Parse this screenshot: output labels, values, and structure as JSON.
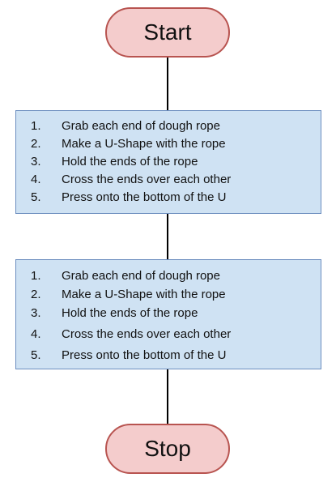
{
  "start": {
    "label": "Start"
  },
  "stop": {
    "label": "Stop"
  },
  "steps_top": [
    {
      "num": "1.",
      "text": "Grab each end of dough rope"
    },
    {
      "num": "2.",
      "text": "Make a U-Shape with the rope"
    },
    {
      "num": "3.",
      "text": "Hold the ends of the rope"
    },
    {
      "num": "4.",
      "text": "Cross the ends over each other"
    },
    {
      "num": "5.",
      "text": "Press onto the bottom of the U"
    }
  ],
  "steps_bottom": [
    {
      "num": "1.",
      "text": "Grab each end of dough rope"
    },
    {
      "num": "2.",
      "text": "Make a U-Shape with the rope"
    },
    {
      "num": "3.",
      "text": "Hold the ends of the rope"
    },
    {
      "num": "4.",
      "text": "Cross the ends over each other"
    },
    {
      "num": "5.",
      "text": "Press onto the bottom of the U"
    }
  ],
  "colors": {
    "terminal_fill": "#f4cccc",
    "terminal_border": "#b85450",
    "process_fill": "#cfe2f3",
    "process_border": "#6c8ebf"
  }
}
